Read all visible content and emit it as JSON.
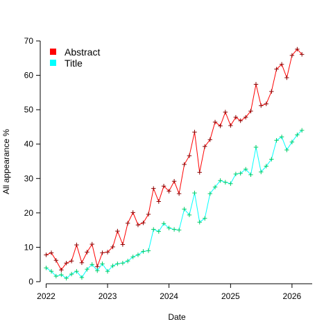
{
  "chart_data": {
    "type": "line",
    "title": "",
    "xlabel": "Date",
    "ylabel": "All appearance %",
    "xlim": [
      "2021-12-01",
      "2026-05-01"
    ],
    "ylim": [
      0,
      70
    ],
    "x_ticks": [
      {
        "label": "2022",
        "date": "2022-01-01"
      },
      {
        "label": "2023",
        "date": "2023-01-01"
      },
      {
        "label": "2024",
        "date": "2024-01-01"
      },
      {
        "label": "2025",
        "date": "2025-01-01"
      },
      {
        "label": "2026",
        "date": "2026-01-01"
      }
    ],
    "y_ticks": [
      0,
      10,
      20,
      30,
      40,
      50,
      60,
      70
    ],
    "grid": false,
    "legend_position": "top-left",
    "series": [
      {
        "name": "Abstract",
        "color": "#ff0000",
        "marker_color": "#8b0000",
        "points": [
          [
            "2022-01-01",
            7.8
          ],
          [
            "2022-02-01",
            8.4
          ],
          [
            "2022-03-01",
            6.2
          ],
          [
            "2022-04-01",
            3.4
          ],
          [
            "2022-05-01",
            5.4
          ],
          [
            "2022-06-01",
            6.0
          ],
          [
            "2022-07-01",
            10.7
          ],
          [
            "2022-08-01",
            5.5
          ],
          [
            "2022-09-01",
            8.6
          ],
          [
            "2022-10-01",
            10.9
          ],
          [
            "2022-11-01",
            4.4
          ],
          [
            "2022-12-01",
            8.4
          ],
          [
            "2023-01-01",
            8.6
          ],
          [
            "2023-02-01",
            10.1
          ],
          [
            "2023-03-01",
            14.7
          ],
          [
            "2023-04-01",
            10.8
          ],
          [
            "2023-05-01",
            17.0
          ],
          [
            "2023-06-01",
            20.1
          ],
          [
            "2023-07-01",
            16.5
          ],
          [
            "2023-08-01",
            17.1
          ],
          [
            "2023-09-01",
            19.6
          ],
          [
            "2023-10-01",
            27.1
          ],
          [
            "2023-11-01",
            23.3
          ],
          [
            "2023-12-01",
            27.8
          ],
          [
            "2024-01-01",
            26.3
          ],
          [
            "2024-02-01",
            29.2
          ],
          [
            "2024-03-01",
            25.6
          ],
          [
            "2024-04-01",
            34.1
          ],
          [
            "2024-05-01",
            36.6
          ],
          [
            "2024-06-01",
            43.5
          ],
          [
            "2024-07-01",
            31.8
          ],
          [
            "2024-08-01",
            39.3
          ],
          [
            "2024-09-01",
            41.3
          ],
          [
            "2024-10-01",
            46.4
          ],
          [
            "2024-11-01",
            45.3
          ],
          [
            "2024-12-01",
            49.3
          ],
          [
            "2025-01-01",
            45.4
          ],
          [
            "2025-02-01",
            47.8
          ],
          [
            "2025-03-01",
            46.8
          ],
          [
            "2025-04-01",
            47.8
          ],
          [
            "2025-05-01",
            49.6
          ],
          [
            "2025-06-01",
            57.4
          ],
          [
            "2025-07-01",
            51.2
          ],
          [
            "2025-08-01",
            51.7
          ],
          [
            "2025-09-01",
            55.3
          ],
          [
            "2025-10-01",
            61.8
          ],
          [
            "2025-11-01",
            63.2
          ],
          [
            "2025-12-01",
            59.3
          ],
          [
            "2026-01-01",
            65.8
          ],
          [
            "2026-02-01",
            67.6
          ],
          [
            "2026-03-01",
            66.1
          ]
        ]
      },
      {
        "name": "Title",
        "color": "#00ffff",
        "marker_color": "#00cc66",
        "points": [
          [
            "2022-01-01",
            4.0
          ],
          [
            "2022-02-01",
            3.0
          ],
          [
            "2022-03-01",
            1.6
          ],
          [
            "2022-04-01",
            2.0
          ],
          [
            "2022-05-01",
            1.0
          ],
          [
            "2022-06-01",
            2.2
          ],
          [
            "2022-07-01",
            3.0
          ],
          [
            "2022-08-01",
            1.2
          ],
          [
            "2022-09-01",
            3.6
          ],
          [
            "2022-10-01",
            5.0
          ],
          [
            "2022-11-01",
            3.2
          ],
          [
            "2022-12-01",
            5.2
          ],
          [
            "2023-01-01",
            3.0
          ],
          [
            "2023-02-01",
            4.6
          ],
          [
            "2023-03-01",
            5.2
          ],
          [
            "2023-04-01",
            5.4
          ],
          [
            "2023-05-01",
            6.0
          ],
          [
            "2023-06-01",
            7.2
          ],
          [
            "2023-07-01",
            7.8
          ],
          [
            "2023-08-01",
            8.8
          ],
          [
            "2023-09-01",
            9.0
          ],
          [
            "2023-10-01",
            15.2
          ],
          [
            "2023-11-01",
            14.6
          ],
          [
            "2023-12-01",
            16.9
          ],
          [
            "2024-01-01",
            15.6
          ],
          [
            "2024-02-01",
            15.2
          ],
          [
            "2024-03-01",
            15.0
          ],
          [
            "2024-04-01",
            21.1
          ],
          [
            "2024-05-01",
            19.4
          ],
          [
            "2024-06-01",
            25.8
          ],
          [
            "2024-07-01",
            17.3
          ],
          [
            "2024-08-01",
            18.4
          ],
          [
            "2024-09-01",
            25.6
          ],
          [
            "2024-10-01",
            27.5
          ],
          [
            "2024-11-01",
            29.4
          ],
          [
            "2024-12-01",
            28.9
          ],
          [
            "2025-01-01",
            28.5
          ],
          [
            "2025-02-01",
            31.3
          ],
          [
            "2025-03-01",
            31.5
          ],
          [
            "2025-04-01",
            32.7
          ],
          [
            "2025-05-01",
            31.1
          ],
          [
            "2025-06-01",
            39.1
          ],
          [
            "2025-07-01",
            31.9
          ],
          [
            "2025-08-01",
            33.6
          ],
          [
            "2025-09-01",
            35.6
          ],
          [
            "2025-10-01",
            41.1
          ],
          [
            "2025-11-01",
            42.1
          ],
          [
            "2025-12-01",
            38.3
          ],
          [
            "2026-01-01",
            40.6
          ],
          [
            "2026-02-01",
            42.7
          ],
          [
            "2026-03-01",
            44.0
          ]
        ]
      }
    ]
  }
}
